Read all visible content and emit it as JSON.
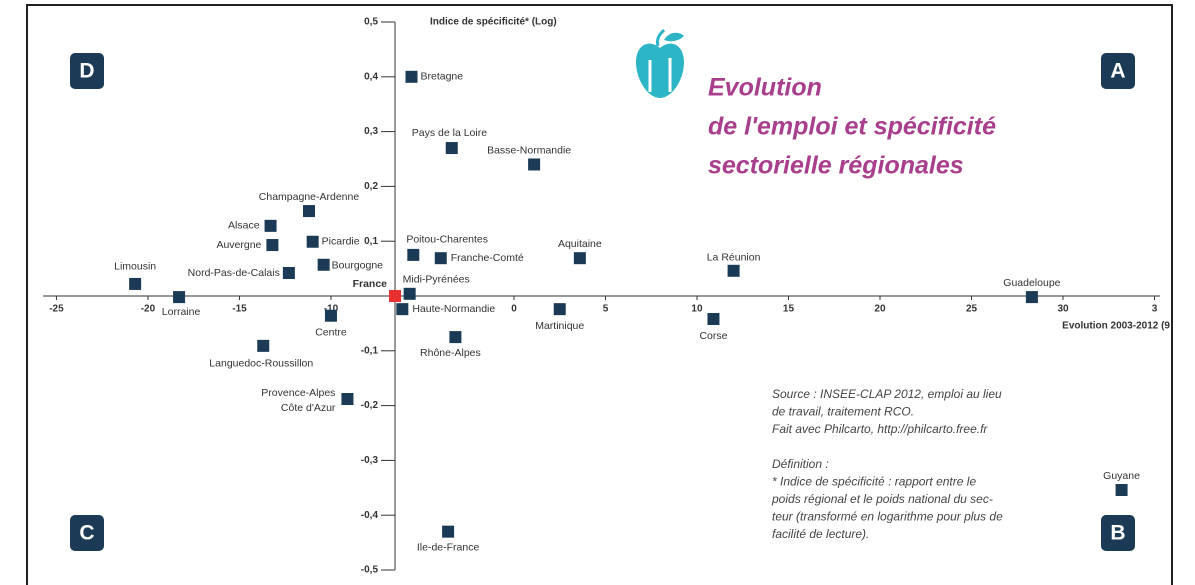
{
  "chart_data": {
    "type": "scatter",
    "title": [
      "Evolution",
      "de l'emploi et spécificité",
      "sectorielle régionales"
    ],
    "x_label": "Evolution 2003-2012 (9",
    "y_label": "Indice de spécificité* (Log)",
    "quadrants": [
      "D",
      "A",
      "C",
      "B"
    ],
    "notes": [
      "Source : INSEE-CLAP 2012, emploi au lieu",
      "de travail, traitement RCO.",
      "Fait avec Philcarto, http://philcarto.free.fr",
      "Définition :",
      "* Indice de spécificité : rapport entre le",
      "poids régional et le poids national du sec-",
      "teur (transformé en logarithme pour plus de",
      "facilité de lecture)."
    ],
    "xlim": [
      -26.5,
      35.3
    ],
    "ylim": [
      -0.5,
      0.5
    ],
    "xticks": [
      -25,
      -20,
      -15,
      -10,
      0,
      5,
      10,
      15,
      20,
      25,
      30,
      {
        "value": 35,
        "label": "3"
      }
    ],
    "yticks": [
      {
        "value": 0.5,
        "label": "0,5"
      },
      {
        "value": 0.4,
        "label": "0,4"
      },
      {
        "value": 0.3,
        "label": "0,3"
      },
      {
        "value": 0.2,
        "label": "0,2"
      },
      {
        "value": 0.1,
        "label": "0,1"
      },
      {
        "value": -0.1,
        "label": "-0,1"
      },
      {
        "value": -0.2,
        "label": "-0,2"
      },
      {
        "value": -0.3,
        "label": "-0,3"
      },
      {
        "value": -0.4,
        "label": "-0,4"
      },
      {
        "value": -0.5,
        "label": "-0,5"
      }
    ],
    "series": [
      {
        "color": "#1b3a55",
        "labels": [
          "Bretagne",
          "Pays de la Loire",
          "Basse-Normandie",
          "Champagne-Ardenne",
          "Alsace",
          "Auvergne",
          "Picardie",
          "Bourgogne",
          "Nord-Pas-de-Calais",
          "Limousin",
          "Lorraine",
          "Poitou-Charentes",
          "Franche-Comté",
          "Aquitaine",
          "La Réunion",
          "Guadeloupe",
          "Midi-Pyrénées",
          "Haute-Normandie",
          "Centre",
          "Martinique",
          "Corse",
          "Rhône-Alpes",
          "Languedoc-Roussillon",
          [
            "Provence-Alpes",
            "Côte d'Azur"
          ],
          "Ile-de-France",
          "Guyane"
        ],
        "x": [
          -5.6,
          -3.4,
          1.1,
          -11.2,
          -13.3,
          -13.2,
          -11.0,
          -10.4,
          -12.3,
          -20.7,
          -18.3,
          -5.5,
          -4.0,
          3.6,
          12.0,
          28.3,
          -5.7,
          -6.1,
          -10.0,
          2.5,
          10.9,
          -3.2,
          -13.7,
          -9.1,
          -3.6,
          33.2
        ],
        "values": [
          0.4,
          0.27,
          0.24,
          0.155,
          0.128,
          0.093,
          0.099,
          0.057,
          0.042,
          0.022,
          -0.002,
          0.075,
          0.069,
          0.069,
          0.046,
          -0.002,
          0.004,
          -0.024,
          -0.036,
          -0.024,
          -0.042,
          -0.075,
          -0.091,
          -0.188,
          -0.43,
          -0.354
        ]
      },
      {
        "color": "#e8312f",
        "labels": [
          "France"
        ],
        "x": [
          -6.5
        ],
        "values": [
          0
        ]
      }
    ]
  }
}
